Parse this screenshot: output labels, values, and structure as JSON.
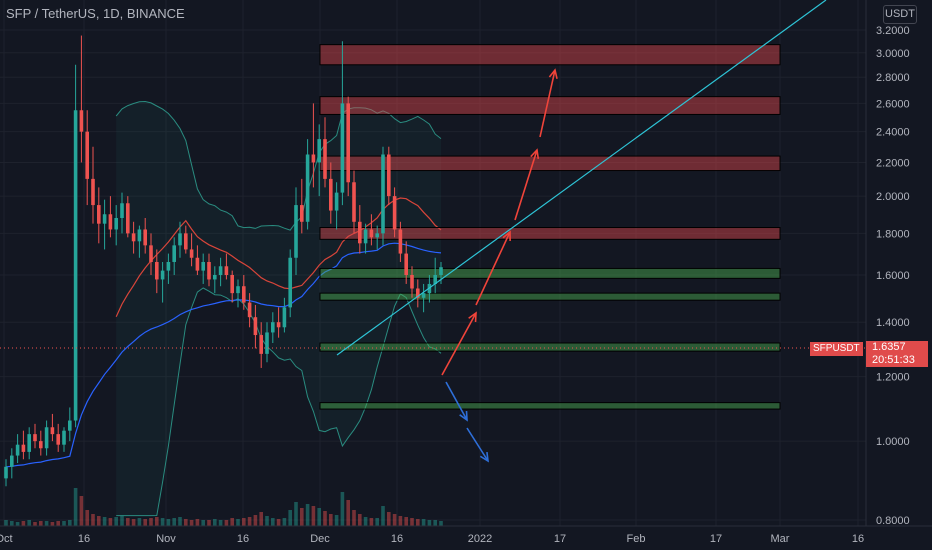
{
  "header": {
    "title": "SFP / TetherUS, 1D, BINANCE",
    "currency_button": "USDT"
  },
  "price_tag": {
    "symbol": "SFPUSDT",
    "price": "1.6357",
    "countdown": "20:51:33"
  },
  "colors": {
    "background": "#131722",
    "up": "#26a69a",
    "down": "#ef5350",
    "bb": "#2a8c80",
    "ma_red": "#d9453a",
    "ma_blue": "#2962ff",
    "trend": "#2ec4d6",
    "zone_red": "#e0474c",
    "zone_green": "#4caf50",
    "arrow_up": "#f0443a",
    "arrow_down": "#2e6fd9"
  },
  "chart_data": {
    "type": "candlestick",
    "title": "SFP / TetherUS, 1D, BINANCE",
    "y_axis": {
      "scale": "log",
      "range": [
        0.78,
        3.3
      ],
      "ticks": [
        "3.2000",
        "3.0000",
        "2.8000",
        "2.6000",
        "2.4000",
        "2.2000",
        "2.0000",
        "1.8000",
        "1.6000",
        "1.4000",
        "1.2000",
        "1.0000",
        "0.8000"
      ]
    },
    "x_axis": {
      "ticks": [
        "Oct",
        "16",
        "Nov",
        "16",
        "Dec",
        "16",
        "2022",
        "17",
        "Feb",
        "17",
        "Mar",
        "16"
      ]
    },
    "last_price": 1.6357,
    "candles_ohlc": [
      [
        0.9,
        0.95,
        0.88,
        0.93
      ],
      [
        0.93,
        0.98,
        0.9,
        0.96
      ],
      [
        0.96,
        1.02,
        0.94,
        0.99
      ],
      [
        0.99,
        1.03,
        0.95,
        0.97
      ],
      [
        0.97,
        1.04,
        0.95,
        1.02
      ],
      [
        1.02,
        1.05,
        0.98,
        1.0
      ],
      [
        1.0,
        1.03,
        0.96,
        0.98
      ],
      [
        0.98,
        1.06,
        0.96,
        1.04
      ],
      [
        1.04,
        1.08,
        1.0,
        1.02
      ],
      [
        1.02,
        1.05,
        0.97,
        0.99
      ],
      [
        0.99,
        1.04,
        0.97,
        1.03
      ],
      [
        1.03,
        1.1,
        1.0,
        1.06
      ],
      [
        1.06,
        2.9,
        1.04,
        2.55
      ],
      [
        2.55,
        3.15,
        2.2,
        2.4
      ],
      [
        2.4,
        2.55,
        1.95,
        2.1
      ],
      [
        2.1,
        2.3,
        1.85,
        1.95
      ],
      [
        1.95,
        2.05,
        1.75,
        1.85
      ],
      [
        1.85,
        1.98,
        1.72,
        1.9
      ],
      [
        1.9,
        2.0,
        1.78,
        1.82
      ],
      [
        1.82,
        1.95,
        1.74,
        1.88
      ],
      [
        1.88,
        2.02,
        1.8,
        1.96
      ],
      [
        1.96,
        2.0,
        1.78,
        1.8
      ],
      [
        1.8,
        1.86,
        1.7,
        1.76
      ],
      [
        1.76,
        1.84,
        1.68,
        1.82
      ],
      [
        1.82,
        1.88,
        1.7,
        1.74
      ],
      [
        1.74,
        1.8,
        1.6,
        1.66
      ],
      [
        1.66,
        1.72,
        1.52,
        1.58
      ],
      [
        1.58,
        1.66,
        1.48,
        1.62
      ],
      [
        1.62,
        1.7,
        1.56,
        1.66
      ],
      [
        1.66,
        1.78,
        1.6,
        1.74
      ],
      [
        1.74,
        1.86,
        1.68,
        1.8
      ],
      [
        1.8,
        1.84,
        1.7,
        1.72
      ],
      [
        1.72,
        1.8,
        1.64,
        1.68
      ],
      [
        1.68,
        1.74,
        1.6,
        1.62
      ],
      [
        1.62,
        1.7,
        1.56,
        1.66
      ],
      [
        1.66,
        1.7,
        1.55,
        1.58
      ],
      [
        1.58,
        1.64,
        1.52,
        1.6
      ],
      [
        1.6,
        1.68,
        1.55,
        1.64
      ],
      [
        1.64,
        1.7,
        1.58,
        1.6
      ],
      [
        1.6,
        1.62,
        1.48,
        1.52
      ],
      [
        1.52,
        1.58,
        1.46,
        1.55
      ],
      [
        1.55,
        1.6,
        1.45,
        1.48
      ],
      [
        1.48,
        1.52,
        1.38,
        1.42
      ],
      [
        1.42,
        1.47,
        1.3,
        1.35
      ],
      [
        1.35,
        1.4,
        1.23,
        1.28
      ],
      [
        1.28,
        1.4,
        1.25,
        1.36
      ],
      [
        1.36,
        1.44,
        1.32,
        1.4
      ],
      [
        1.4,
        1.46,
        1.34,
        1.38
      ],
      [
        1.38,
        1.5,
        1.36,
        1.46
      ],
      [
        1.46,
        1.72,
        1.42,
        1.68
      ],
      [
        1.68,
        2.05,
        1.6,
        1.95
      ],
      [
        1.95,
        2.1,
        1.8,
        1.86
      ],
      [
        1.86,
        2.35,
        1.82,
        2.25
      ],
      [
        2.25,
        2.6,
        2.05,
        2.2
      ],
      [
        2.2,
        2.45,
        2.0,
        2.35
      ],
      [
        2.35,
        2.5,
        2.05,
        2.1
      ],
      [
        2.1,
        2.2,
        1.85,
        1.92
      ],
      [
        1.92,
        2.08,
        1.82,
        2.02
      ],
      [
        2.02,
        3.1,
        1.95,
        2.6
      ],
      [
        2.6,
        2.65,
        2.0,
        2.08
      ],
      [
        2.08,
        2.15,
        1.8,
        1.86
      ],
      [
        1.86,
        1.95,
        1.7,
        1.75
      ],
      [
        1.75,
        1.85,
        1.7,
        1.82
      ],
      [
        1.82,
        1.9,
        1.74,
        1.78
      ],
      [
        1.78,
        1.84,
        1.72,
        1.8
      ],
      [
        1.8,
        2.3,
        1.74,
        2.25
      ],
      [
        2.25,
        2.3,
        1.95,
        2.0
      ],
      [
        2.0,
        2.05,
        1.78,
        1.82
      ],
      [
        1.82,
        1.86,
        1.66,
        1.7
      ],
      [
        1.7,
        1.76,
        1.56,
        1.6
      ],
      [
        1.6,
        1.64,
        1.5,
        1.54
      ],
      [
        1.54,
        1.58,
        1.46,
        1.5
      ],
      [
        1.5,
        1.56,
        1.44,
        1.52
      ],
      [
        1.52,
        1.6,
        1.48,
        1.56
      ],
      [
        1.56,
        1.68,
        1.52,
        1.6
      ],
      [
        1.6,
        1.66,
        1.56,
        1.6357
      ]
    ],
    "zones_red": [
      [
        2.9,
        3.07
      ],
      [
        2.52,
        2.65
      ],
      [
        2.15,
        2.24
      ],
      [
        1.77,
        1.83
      ]
    ],
    "zones_green": [
      [
        1.585,
        1.63
      ],
      [
        1.49,
        1.52
      ],
      [
        1.29,
        1.32
      ],
      [
        1.095,
        1.115
      ]
    ],
    "volume": [
      6,
      5,
      4,
      5,
      6,
      4,
      5,
      5,
      4,
      5,
      5,
      6,
      38,
      30,
      16,
      12,
      10,
      9,
      8,
      9,
      10,
      8,
      7,
      8,
      7,
      8,
      9,
      8,
      7,
      8,
      9,
      7,
      6,
      7,
      6,
      6,
      7,
      6,
      6,
      8,
      7,
      8,
      9,
      11,
      14,
      10,
      8,
      7,
      8,
      16,
      24,
      18,
      22,
      20,
      18,
      15,
      12,
      11,
      34,
      26,
      16,
      12,
      9,
      8,
      8,
      20,
      14,
      12,
      10,
      9,
      8,
      7,
      7,
      6,
      6,
      5
    ]
  }
}
